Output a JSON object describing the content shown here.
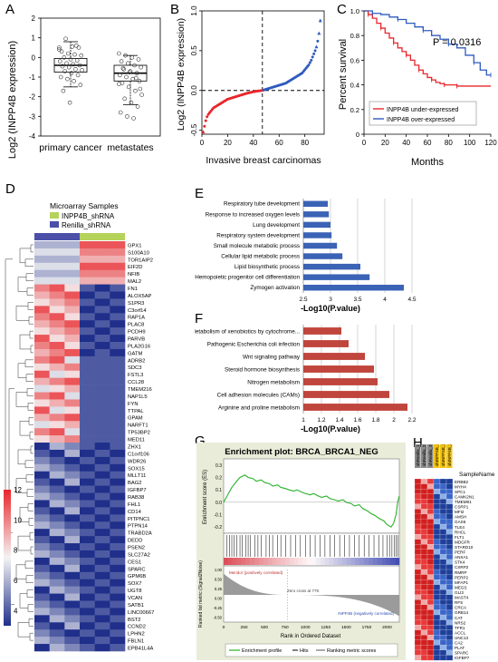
{
  "panels": [
    "A",
    "B",
    "C",
    "D",
    "E",
    "F",
    "G",
    "H"
  ],
  "chart_data": [
    {
      "panel": "A",
      "type": "box",
      "ylabel": "Log2 (INPP4B expression)",
      "ylim": [
        -4,
        2
      ],
      "yticks": [
        "-4",
        "-3",
        "-2",
        "-1",
        "0",
        "1",
        "2"
      ],
      "categories": [
        "primary cancer",
        "metastates"
      ],
      "boxes": [
        {
          "q1": -0.75,
          "median": -0.4,
          "q3": -0.05,
          "wlow": -1.5,
          "whigh": 0.8
        },
        {
          "q1": -1.2,
          "median": -0.8,
          "q3": -0.4,
          "wlow": -2.4,
          "whigh": 0.1
        }
      ],
      "points": [
        [
          0.5,
          0.95,
          0.55,
          0.5,
          0.3,
          0.2,
          0.15,
          0.1,
          0.0,
          -0.1,
          -0.15,
          -0.2,
          -0.3,
          -0.35,
          -0.4,
          -0.45,
          -0.5,
          -0.6,
          -0.65,
          -0.7,
          -0.8,
          -0.9,
          -1.0,
          -1.1,
          -1.2,
          -1.4,
          -1.7,
          -2.3,
          0.6,
          0.4
        ],
        [
          0.2,
          0.1,
          0.0,
          -0.1,
          -0.2,
          -0.3,
          -0.4,
          -0.5,
          -0.6,
          -0.7,
          -0.8,
          -0.9,
          -1.0,
          -1.1,
          -1.2,
          -1.3,
          -1.5,
          -1.7,
          -1.9,
          -2.1,
          -2.3,
          -2.5,
          -2.8,
          -3.0,
          -3.1,
          -1.6,
          -0.55,
          -0.75,
          -1.05,
          -1.35
        ]
      ]
    },
    {
      "panel": "B",
      "type": "scatter",
      "xlabel": "Invasive breast carcinomas",
      "ylabel": "Log2 (INPP4B expression)",
      "xlim": [
        0,
        95
      ],
      "ylim": [
        -0.55,
        1.0
      ],
      "xticks": [
        "0",
        "20",
        "40",
        "60",
        "80"
      ],
      "yticks": [
        "-0.5",
        "0.0",
        "0.5",
        "1.0"
      ],
      "cutoff_x": 47,
      "colors": {
        "low": "#e8262b",
        "high": "#2f5bbf"
      },
      "low_values": [
        -0.52,
        -0.45,
        -0.38,
        -0.33,
        -0.3,
        -0.28,
        -0.26,
        -0.24,
        -0.22,
        -0.21,
        -0.2,
        -0.19,
        -0.18,
        -0.17,
        -0.16,
        -0.15,
        -0.14,
        -0.13,
        -0.12,
        -0.11,
        -0.105,
        -0.1,
        -0.095,
        -0.09,
        -0.085,
        -0.08,
        -0.075,
        -0.07,
        -0.065,
        -0.06,
        -0.055,
        -0.05,
        -0.045,
        -0.04,
        -0.036,
        -0.032,
        -0.028,
        -0.024,
        -0.02,
        -0.017,
        -0.014,
        -0.011,
        -0.008,
        -0.006,
        -0.004,
        -0.002,
        0.0
      ],
      "high_values": [
        0.005,
        0.01,
        0.015,
        0.02,
        0.025,
        0.03,
        0.035,
        0.04,
        0.045,
        0.05,
        0.055,
        0.06,
        0.065,
        0.07,
        0.075,
        0.08,
        0.085,
        0.09,
        0.1,
        0.11,
        0.12,
        0.13,
        0.14,
        0.15,
        0.16,
        0.17,
        0.18,
        0.19,
        0.2,
        0.21,
        0.22,
        0.24,
        0.26,
        0.28,
        0.3,
        0.32,
        0.35,
        0.38,
        0.42,
        0.46,
        0.5,
        0.55,
        0.62,
        0.72,
        0.88
      ]
    },
    {
      "panel": "C",
      "type": "line",
      "xlabel": "Months",
      "ylabel": "Percent survival",
      "xlim": [
        0,
        120
      ],
      "ylim": [
        0,
        1.0
      ],
      "xticks": [
        "0",
        "20",
        "40",
        "60",
        "80",
        "100",
        "120"
      ],
      "yticks": [
        "0",
        "0.2",
        "0.4",
        "0.6",
        "0.8",
        "1.0"
      ],
      "annotation": "P = 0.0316",
      "series": [
        {
          "name": "INPP4B under-expressed",
          "color": "#e8262b",
          "x": [
            0,
            4,
            8,
            12,
            16,
            20,
            24,
            28,
            32,
            36,
            40,
            44,
            48,
            52,
            56,
            60,
            64,
            68,
            72,
            76,
            80,
            84,
            88,
            120
          ],
          "y": [
            1.0,
            0.97,
            0.94,
            0.9,
            0.86,
            0.82,
            0.78,
            0.74,
            0.7,
            0.67,
            0.64,
            0.6,
            0.56,
            0.52,
            0.49,
            0.46,
            0.44,
            0.42,
            0.41,
            0.4,
            0.4,
            0.4,
            0.39,
            0.39
          ]
        },
        {
          "name": "INPP4B over-expressed",
          "color": "#2f5bbf",
          "x": [
            0,
            8,
            16,
            24,
            32,
            40,
            48,
            56,
            64,
            72,
            80,
            88,
            96,
            104,
            110,
            116,
            120
          ],
          "y": [
            1.0,
            0.98,
            0.97,
            0.95,
            0.93,
            0.9,
            0.87,
            0.84,
            0.8,
            0.77,
            0.73,
            0.7,
            0.64,
            0.58,
            0.52,
            0.48,
            0.48
          ]
        }
      ]
    },
    {
      "panel": "D",
      "type": "heatmap",
      "title": "Microarray Samples",
      "legend": [
        {
          "label": "INPP4B_shRNA",
          "color": "#b5d25a"
        },
        {
          "label": "Renilla_shRNA",
          "color": "#4b4fa8"
        }
      ],
      "colorbar_ticks": [
        "12",
        "10",
        "8",
        "6",
        "4"
      ],
      "genes": [
        "GPX1",
        "S100A10",
        "TOR1AIP2",
        "EIF2D",
        "NFIB",
        "MAL2",
        "FN1",
        "ALOX5AP",
        "S1PR3",
        "C3orf14",
        "RAP1A",
        "PLAC8",
        "PCDH9",
        "PARVB",
        "PLA2G16",
        "GATM",
        "ADRB2",
        "SDC3",
        "FSTL3",
        "CCL28",
        "TMEM216",
        "NAP1L5",
        "FYN",
        "TTPAL",
        "GPAM",
        "NARFT1",
        "TP53BP2",
        "MED11",
        "ZHX1",
        "C1orf106",
        "WDR26",
        "SOX15",
        "MLLT11",
        "BAG2",
        "IGFBP7",
        "RAB38",
        "FHL1",
        "CD14",
        "PITPNC1",
        "PTPN14",
        "TRABD2A",
        "DEDD",
        "PSEN2",
        "SLC27A2",
        "CES1",
        "SPARC",
        "GPM6B",
        "SOX7",
        "UGT8",
        "VCAN",
        "SATB1",
        "LINC00667",
        "BST2",
        "CCND2",
        "LPHN2",
        "FBLN1",
        "EPB41L4A"
      ]
    },
    {
      "panel": "E",
      "type": "bar",
      "xlabel": "-Log10(P.value)",
      "xlim": [
        2.5,
        4.5
      ],
      "xticks": [
        "2.5",
        "3",
        "3.5",
        "4",
        "4.5"
      ],
      "bar_color": "#3b63b5",
      "categories": [
        "Respiratory tube development",
        "Response to increased oxygen levels",
        "Lung development",
        "Respiratory system development",
        "Small molecule metabolic process",
        "Cellular lipid metabolic process",
        "Lipid biosynthetic process",
        "Hemopoietic progenitor cell differentiation",
        "Zymogen activation"
      ],
      "values": [
        2.95,
        2.97,
        3.0,
        3.02,
        3.12,
        3.22,
        3.55,
        3.72,
        4.35
      ]
    },
    {
      "panel": "F",
      "type": "bar",
      "xlabel": "-Log10(P.value)",
      "xlim": [
        1.0,
        2.2
      ],
      "xticks": [
        "1",
        "1.2",
        "1.4",
        "1.6",
        "1.8",
        "2",
        "2.2"
      ],
      "bar_color": "#c0453c",
      "categories": [
        "Metabolism of xenobiotics by cytochrome...",
        "Pathogenic Escherichia coli infection",
        "Wnt signaling pathway",
        "Steroid hormone biosynthesis",
        "Nitrogen metabolism",
        "Cell adhesion molecules (CAMs)",
        "Arginine and proline metabolism"
      ],
      "values": [
        1.42,
        1.5,
        1.68,
        1.78,
        1.82,
        1.95,
        2.15
      ]
    },
    {
      "panel": "G",
      "type": "line",
      "title": "Enrichment plot: BRCA_BRCA1_NEG",
      "ylabel": "Enrichment score (ES)",
      "ylabel2": "Ranked list metric (Signal2Noise)",
      "xlabel": "Rank in Ordered Dataset",
      "xlim": [
        0,
        2150
      ],
      "ylim": [
        -0.25,
        0.35
      ],
      "xticks": [
        "0",
        "250",
        "500",
        "750",
        "1000",
        "1250",
        "1500",
        "1750",
        "2000"
      ],
      "yticks": [
        "-0.2",
        "-0.1",
        "0.0",
        "0.1",
        "0.2",
        "0.3"
      ],
      "metric_yticks": [
        "1.00",
        "0.50",
        "0.25",
        "0.00",
        "-0.25",
        "-0.50"
      ],
      "zero_cross_label": "Zero cross at 779",
      "left_label": "Meridor (positively correlated)",
      "right_label": "INPP4B (negatively correlated)",
      "legend": [
        "Enrichment profile",
        "Hits",
        "Ranking metric scores"
      ],
      "series": [
        {
          "name": "Enrichment profile",
          "color": "#2ab12a",
          "x": [
            0,
            50,
            100,
            160,
            200,
            260,
            300,
            360,
            400,
            460,
            500,
            560,
            600,
            660,
            700,
            760,
            800,
            860,
            900,
            960,
            1000,
            1060,
            1100,
            1160,
            1200,
            1260,
            1300,
            1360,
            1400,
            1460,
            1500,
            1560,
            1600,
            1660,
            1700,
            1760,
            1800,
            1860,
            1900,
            1960,
            2000,
            2050,
            2080,
            2110,
            2130,
            2150
          ],
          "y": [
            0.0,
            0.06,
            0.12,
            0.17,
            0.2,
            0.22,
            0.2,
            0.19,
            0.17,
            0.18,
            0.16,
            0.15,
            0.13,
            0.14,
            0.12,
            0.11,
            0.1,
            0.09,
            0.1,
            0.08,
            0.07,
            0.06,
            0.07,
            0.05,
            0.04,
            0.05,
            0.03,
            0.02,
            0.01,
            0.02,
            0.0,
            -0.01,
            -0.03,
            -0.02,
            -0.05,
            -0.07,
            -0.09,
            -0.11,
            -0.13,
            -0.15,
            -0.18,
            -0.2,
            -0.17,
            -0.1,
            0.0,
            0.05
          ]
        }
      ],
      "hits": [
        40,
        70,
        100,
        130,
        160,
        200,
        230,
        270,
        300,
        330,
        380,
        420,
        460,
        520,
        560,
        600,
        660,
        700,
        760,
        820,
        880,
        940,
        1000,
        1060,
        1120,
        1180,
        1240,
        1300,
        1360,
        1420,
        1480,
        1540,
        1600,
        1660,
        1720,
        1780,
        1840,
        1900,
        1950,
        2000,
        2030,
        2060,
        2090,
        2110,
        2130
      ]
    },
    {
      "panel": "H",
      "type": "heatmap",
      "column_header": "SampleName",
      "samples": [
        "shRenilla_1",
        "shRenilla_2",
        "shRenilla_3",
        "shINPP4B_1",
        "shINPP4B_2",
        "shINPP4B_3"
      ],
      "sample_colors": [
        "#8a8a8a",
        "#8a8a8a",
        "#8a8a8a",
        "#f2c313",
        "#f2c313",
        "#f2c313"
      ],
      "genes": [
        "ERBB2",
        "MYH4",
        "SPC1",
        "CAMK2N1",
        "TMEM91",
        "CSRP1",
        "MFI2",
        "AMSH",
        "GAS6",
        "TLE4",
        "RHCL",
        "FLT1",
        "MDGFR",
        "STARD10",
        "PERF",
        "ANXA1",
        "STK4",
        "CSRP2",
        "RMRP",
        "PERP2",
        "MFAP1",
        "MEGS",
        "GLI3",
        "MAST4",
        "RFS",
        "CRCA",
        "GRB14",
        "CAT",
        "NRS2",
        "TFR1",
        "ACCL",
        "UNC13",
        "CA2",
        "PLAT",
        "SPARC",
        "IGFBP7"
      ]
    }
  ]
}
